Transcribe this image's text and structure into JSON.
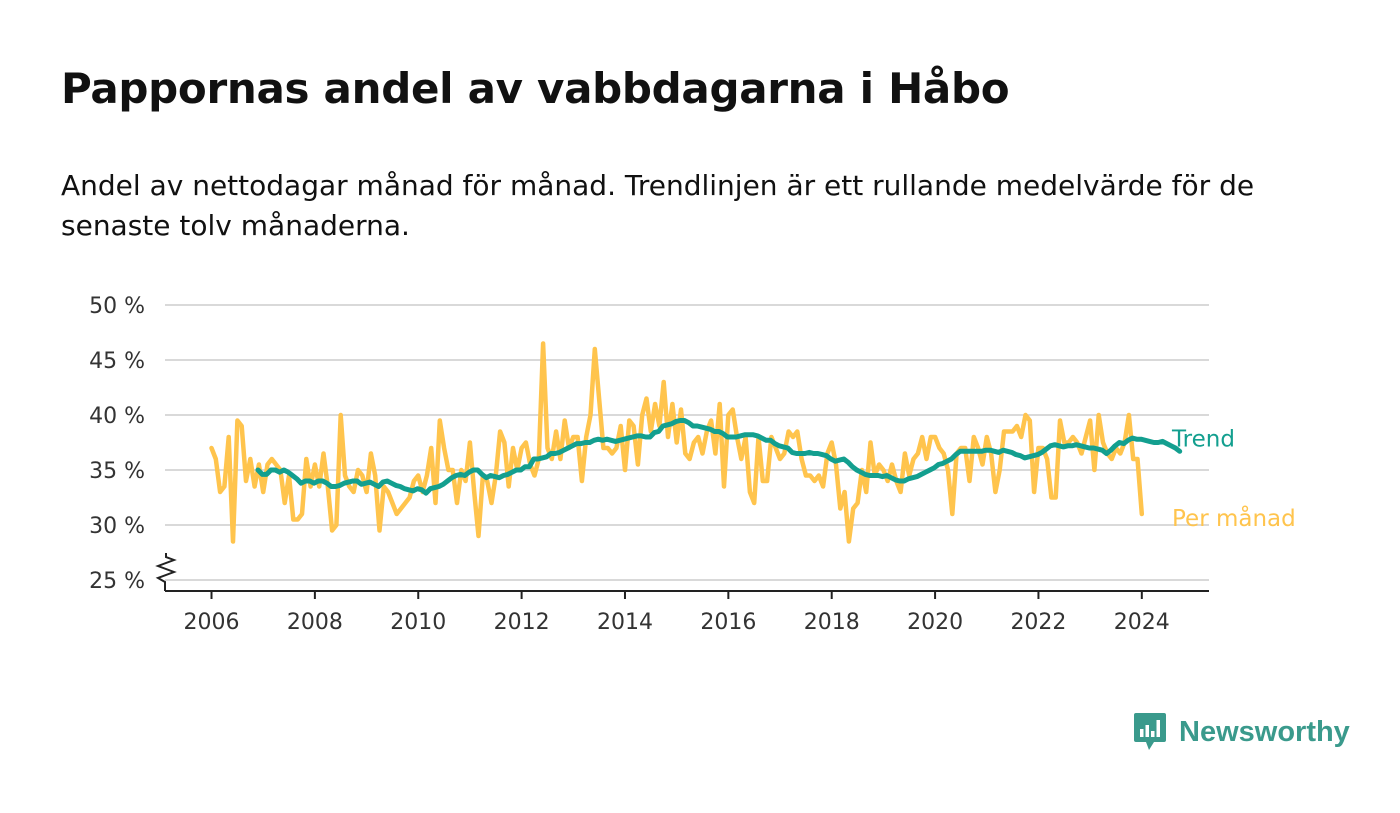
{
  "header": {
    "title": "Pappornas andel av vabbdagarna i Håbo",
    "subtitle": "Andel av nettodagar månad för månad. Trendlinjen är ett rullande medelvärde för de senaste tolv månaderna."
  },
  "brand": {
    "name": "Newsworthy",
    "color": "#3a9a8c",
    "icon": "newsworthy-logo-icon"
  },
  "chart_data": {
    "type": "line",
    "x_axis": {
      "range": [
        2005.1,
        2025.3
      ],
      "ticks": [
        2006,
        2008,
        2010,
        2012,
        2014,
        2016,
        2018,
        2020,
        2022,
        2024
      ]
    },
    "y_axis": {
      "range": [
        24,
        50
      ],
      "ticks": [
        25,
        30,
        35,
        40,
        45,
        50
      ],
      "tick_labels": [
        "25 %",
        "30 %",
        "35 %",
        "40 %",
        "45 %",
        "50 %"
      ],
      "axis_break": true
    },
    "grid": true,
    "series": [
      {
        "name": "Per månad",
        "color": "#ffc44d",
        "start": 2006.0,
        "step_months": 1,
        "values": [
          37.0,
          36.0,
          33.0,
          33.5,
          38.0,
          28.5,
          39.5,
          39.0,
          34.0,
          36.0,
          33.5,
          35.5,
          33.0,
          35.5,
          36.0,
          35.5,
          35.0,
          32.0,
          34.5,
          30.5,
          30.5,
          31.0,
          36.0,
          33.5,
          35.5,
          33.5,
          36.5,
          33.5,
          29.5,
          30.0,
          40.0,
          34.5,
          33.5,
          33.0,
          35.0,
          34.5,
          33.0,
          36.5,
          34.5,
          29.5,
          33.5,
          33.0,
          32.0,
          31.0,
          31.5,
          32.0,
          32.5,
          34.0,
          34.5,
          33.0,
          34.5,
          37.0,
          32.0,
          39.5,
          37.0,
          35.0,
          35.0,
          32.0,
          35.0,
          34.0,
          37.5,
          33.0,
          29.0,
          34.5,
          34.0,
          32.0,
          34.5,
          38.5,
          37.5,
          33.5,
          37.0,
          35.0,
          37.0,
          37.5,
          35.5,
          34.5,
          36.0,
          46.5,
          37.0,
          36.0,
          38.5,
          36.0,
          39.5,
          37.0,
          38.0,
          38.0,
          34.0,
          38.0,
          40.0,
          46.0,
          41.5,
          37.0,
          37.0,
          36.5,
          37.0,
          39.0,
          35.0,
          39.5,
          39.0,
          35.5,
          40.0,
          41.5,
          38.5,
          41.0,
          39.0,
          43.0,
          38.0,
          41.0,
          37.5,
          40.5,
          36.5,
          36.0,
          37.5,
          38.0,
          36.5,
          38.5,
          39.5,
          36.5,
          41.0,
          33.5,
          40.0,
          40.5,
          38.0,
          36.0,
          38.0,
          33.0,
          32.0,
          38.0,
          34.0,
          34.0,
          38.0,
          37.0,
          36.0,
          36.5,
          38.5,
          38.0,
          38.5,
          36.0,
          34.5,
          34.5,
          34.0,
          34.5,
          33.5,
          36.5,
          37.5,
          35.5,
          31.5,
          33.0,
          28.5,
          31.5,
          32.0,
          35.0,
          33.0,
          37.5,
          34.5,
          35.5,
          35.0,
          34.0,
          35.5,
          34.0,
          33.0,
          36.5,
          34.5,
          36.0,
          36.5,
          38.0,
          36.0,
          38.0,
          38.0,
          37.0,
          36.5,
          35.0,
          31.0,
          36.5,
          37.0,
          37.0,
          34.0,
          38.0,
          37.0,
          35.5,
          38.0,
          36.5,
          33.0,
          35.0,
          38.5,
          38.5,
          38.5,
          39.0,
          38.0,
          40.0,
          39.5,
          33.0,
          37.0,
          37.0,
          36.0,
          32.5,
          32.5,
          39.5,
          37.5,
          37.5,
          38.0,
          37.5,
          36.5,
          38.0,
          39.5,
          35.0,
          40.0,
          37.5,
          36.5,
          36.0,
          37.0,
          36.5,
          37.5,
          40.0,
          36.0,
          36.0,
          31.0
        ]
      },
      {
        "name": "Trend",
        "color": "#139f8f",
        "start": 2006.9,
        "step_months": 1,
        "values": [
          35.0,
          34.6,
          34.6,
          35.0,
          35.0,
          34.8,
          35.0,
          34.8,
          34.5,
          34.2,
          33.8,
          34.0,
          34.0,
          33.8,
          34.0,
          34.0,
          33.8,
          33.5,
          33.5,
          33.6,
          33.8,
          33.9,
          34.0,
          34.0,
          33.7,
          33.8,
          33.9,
          33.7,
          33.5,
          33.9,
          34.0,
          33.8,
          33.6,
          33.5,
          33.3,
          33.2,
          33.1,
          33.3,
          33.2,
          32.9,
          33.3,
          33.4,
          33.5,
          33.7,
          34.0,
          34.3,
          34.5,
          34.6,
          34.5,
          34.8,
          35.0,
          35.0,
          34.6,
          34.3,
          34.5,
          34.4,
          34.3,
          34.5,
          34.6,
          34.8,
          35.0,
          35.0,
          35.3,
          35.3,
          36.0,
          36.0,
          36.1,
          36.2,
          36.5,
          36.5,
          36.6,
          36.8,
          37.0,
          37.2,
          37.4,
          37.4,
          37.5,
          37.5,
          37.7,
          37.8,
          37.7,
          37.8,
          37.7,
          37.6,
          37.7,
          37.8,
          37.9,
          38.0,
          38.1,
          38.1,
          38.0,
          38.0,
          38.4,
          38.5,
          39.0,
          39.1,
          39.2,
          39.4,
          39.5,
          39.5,
          39.3,
          39.0,
          39.0,
          38.9,
          38.8,
          38.7,
          38.5,
          38.5,
          38.3,
          38.0,
          38.0,
          38.0,
          38.1,
          38.2,
          38.2,
          38.2,
          38.1,
          37.9,
          37.7,
          37.7,
          37.4,
          37.2,
          37.1,
          37.0,
          36.6,
          36.5,
          36.5,
          36.5,
          36.6,
          36.5,
          36.5,
          36.4,
          36.3,
          36.0,
          35.8,
          35.9,
          36.0,
          35.7,
          35.3,
          35.0,
          34.8,
          34.6,
          34.5,
          34.5,
          34.5,
          34.4,
          34.5,
          34.3,
          34.1,
          34.0,
          34.0,
          34.2,
          34.3,
          34.4,
          34.6,
          34.8,
          35.0,
          35.2,
          35.5,
          35.6,
          35.8,
          36.0,
          36.4,
          36.7,
          36.7,
          36.7,
          36.7,
          36.7,
          36.7,
          36.8,
          36.8,
          36.7,
          36.6,
          36.8,
          36.7,
          36.6,
          36.4,
          36.3,
          36.1,
          36.2,
          36.3,
          36.4,
          36.6,
          36.9,
          37.2,
          37.3,
          37.2,
          37.1,
          37.2,
          37.2,
          37.3,
          37.2,
          37.1,
          37.0,
          37.0,
          36.9,
          36.8,
          36.5,
          36.8,
          37.2,
          37.5,
          37.4,
          37.7,
          37.9,
          37.8,
          37.8,
          37.7,
          37.6,
          37.5,
          37.5,
          37.6,
          37.4,
          37.2,
          37.0,
          36.7
        ]
      }
    ]
  }
}
